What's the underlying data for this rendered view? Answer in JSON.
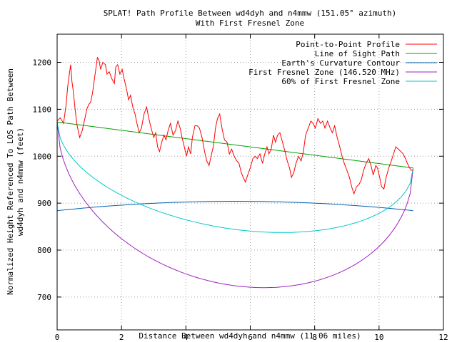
{
  "chart_data": {
    "type": "line",
    "title": "SPLAT! Path Profile Between wd4dyh and n4mmw (151.05° azimuth)",
    "subtitle": "With First Fresnel Zone",
    "xlabel": "Distance Between wd4dyh and n4mmw (11.06 miles)",
    "ylabel_line1": "Normalized Height Referenced To LOS Path Between",
    "ylabel_line2": "wd4dyh and n4mmw (feet)",
    "xlim": [
      0,
      12
    ],
    "ylim": [
      630,
      1260
    ],
    "x_ticks": [
      0,
      2,
      4,
      6,
      8,
      10,
      12
    ],
    "y_ticks": [
      700,
      800,
      900,
      1000,
      1100,
      1200
    ],
    "grid": true,
    "legend_position": "top-right",
    "series": [
      {
        "name": "Point-to-Point Profile",
        "color": "#ff0000",
        "points": [
          [
            0.0,
            1075
          ],
          [
            0.1,
            1082
          ],
          [
            0.2,
            1070
          ],
          [
            0.28,
            1110
          ],
          [
            0.33,
            1150
          ],
          [
            0.38,
            1175
          ],
          [
            0.42,
            1195
          ],
          [
            0.46,
            1160
          ],
          [
            0.5,
            1140
          ],
          [
            0.56,
            1100
          ],
          [
            0.62,
            1065
          ],
          [
            0.7,
            1040
          ],
          [
            0.78,
            1055
          ],
          [
            0.86,
            1080
          ],
          [
            0.92,
            1100
          ],
          [
            0.98,
            1110
          ],
          [
            1.04,
            1115
          ],
          [
            1.1,
            1135
          ],
          [
            1.15,
            1160
          ],
          [
            1.2,
            1185
          ],
          [
            1.25,
            1210
          ],
          [
            1.3,
            1205
          ],
          [
            1.35,
            1185
          ],
          [
            1.42,
            1200
          ],
          [
            1.5,
            1195
          ],
          [
            1.55,
            1175
          ],
          [
            1.62,
            1180
          ],
          [
            1.7,
            1165
          ],
          [
            1.78,
            1155
          ],
          [
            1.82,
            1190
          ],
          [
            1.88,
            1195
          ],
          [
            1.95,
            1175
          ],
          [
            2.02,
            1185
          ],
          [
            2.08,
            1165
          ],
          [
            2.15,
            1145
          ],
          [
            2.22,
            1120
          ],
          [
            2.28,
            1130
          ],
          [
            2.35,
            1105
          ],
          [
            2.42,
            1090
          ],
          [
            2.48,
            1070
          ],
          [
            2.55,
            1050
          ],
          [
            2.62,
            1060
          ],
          [
            2.7,
            1090
          ],
          [
            2.78,
            1105
          ],
          [
            2.85,
            1080
          ],
          [
            2.92,
            1060
          ],
          [
            3.0,
            1040
          ],
          [
            3.06,
            1050
          ],
          [
            3.12,
            1020
          ],
          [
            3.18,
            1010
          ],
          [
            3.25,
            1030
          ],
          [
            3.32,
            1045
          ],
          [
            3.38,
            1035
          ],
          [
            3.45,
            1055
          ],
          [
            3.52,
            1070
          ],
          [
            3.6,
            1045
          ],
          [
            3.68,
            1055
          ],
          [
            3.75,
            1075
          ],
          [
            3.82,
            1060
          ],
          [
            3.88,
            1040
          ],
          [
            3.95,
            1020
          ],
          [
            4.02,
            1000
          ],
          [
            4.08,
            1020
          ],
          [
            4.15,
            1005
          ],
          [
            4.2,
            1040
          ],
          [
            4.28,
            1065
          ],
          [
            4.35,
            1065
          ],
          [
            4.42,
            1060
          ],
          [
            4.5,
            1040
          ],
          [
            4.58,
            1010
          ],
          [
            4.65,
            990
          ],
          [
            4.72,
            980
          ],
          [
            4.78,
            1000
          ],
          [
            4.85,
            1020
          ],
          [
            4.92,
            1060
          ],
          [
            4.98,
            1080
          ],
          [
            5.05,
            1090
          ],
          [
            5.12,
            1060
          ],
          [
            5.2,
            1035
          ],
          [
            5.28,
            1030
          ],
          [
            5.35,
            1005
          ],
          [
            5.42,
            1015
          ],
          [
            5.5,
            1000
          ],
          [
            5.58,
            990
          ],
          [
            5.65,
            985
          ],
          [
            5.72,
            965
          ],
          [
            5.78,
            955
          ],
          [
            5.85,
            945
          ],
          [
            5.92,
            960
          ],
          [
            6.0,
            975
          ],
          [
            6.08,
            995
          ],
          [
            6.15,
            1000
          ],
          [
            6.22,
            995
          ],
          [
            6.3,
            1005
          ],
          [
            6.38,
            985
          ],
          [
            6.45,
            1005
          ],
          [
            6.52,
            1020
          ],
          [
            6.58,
            1005
          ],
          [
            6.65,
            1015
          ],
          [
            6.72,
            1045
          ],
          [
            6.78,
            1030
          ],
          [
            6.85,
            1045
          ],
          [
            6.92,
            1050
          ],
          [
            7.0,
            1030
          ],
          [
            7.08,
            1010
          ],
          [
            7.15,
            990
          ],
          [
            7.22,
            975
          ],
          [
            7.28,
            955
          ],
          [
            7.35,
            965
          ],
          [
            7.42,
            985
          ],
          [
            7.5,
            1000
          ],
          [
            7.58,
            990
          ],
          [
            7.65,
            1010
          ],
          [
            7.72,
            1045
          ],
          [
            7.8,
            1060
          ],
          [
            7.88,
            1075
          ],
          [
            7.95,
            1070
          ],
          [
            8.02,
            1060
          ],
          [
            8.1,
            1080
          ],
          [
            8.18,
            1070
          ],
          [
            8.25,
            1075
          ],
          [
            8.32,
            1060
          ],
          [
            8.4,
            1075
          ],
          [
            8.48,
            1060
          ],
          [
            8.55,
            1050
          ],
          [
            8.62,
            1065
          ],
          [
            8.7,
            1040
          ],
          [
            8.78,
            1020
          ],
          [
            8.85,
            1000
          ],
          [
            8.92,
            985
          ],
          [
            9.0,
            970
          ],
          [
            9.08,
            955
          ],
          [
            9.15,
            935
          ],
          [
            9.22,
            920
          ],
          [
            9.3,
            935
          ],
          [
            9.38,
            940
          ],
          [
            9.45,
            950
          ],
          [
            9.52,
            970
          ],
          [
            9.6,
            985
          ],
          [
            9.68,
            995
          ],
          [
            9.75,
            980
          ],
          [
            9.82,
            960
          ],
          [
            9.9,
            980
          ],
          [
            9.95,
            975
          ],
          [
            10.02,
            955
          ],
          [
            10.08,
            935
          ],
          [
            10.15,
            930
          ],
          [
            10.22,
            955
          ],
          [
            10.3,
            975
          ],
          [
            10.38,
            990
          ],
          [
            10.45,
            1005
          ],
          [
            10.52,
            1020
          ],
          [
            10.6,
            1015
          ],
          [
            10.68,
            1010
          ],
          [
            10.75,
            1005
          ],
          [
            10.82,
            995
          ],
          [
            10.88,
            985
          ],
          [
            10.95,
            975
          ],
          [
            11.0,
            970
          ],
          [
            11.06,
            970
          ]
        ]
      },
      {
        "name": "Line of Sight Path",
        "color": "#00a000",
        "points": [
          [
            0,
            1073
          ],
          [
            11.06,
            975
          ]
        ]
      },
      {
        "name": "Earth's Curvature Contour",
        "color": "#0060b0",
        "type": "curve",
        "baseline": 884,
        "peak": 904
      },
      {
        "name": "First Fresnel Zone (146.520 MHz)",
        "color": "#a020c0",
        "type": "fresnel",
        "radius_ft": 300
      },
      {
        "name": "60% of First Fresnel Zone",
        "color": "#00c8c8",
        "type": "fresnel",
        "radius_ft": 180
      }
    ]
  }
}
